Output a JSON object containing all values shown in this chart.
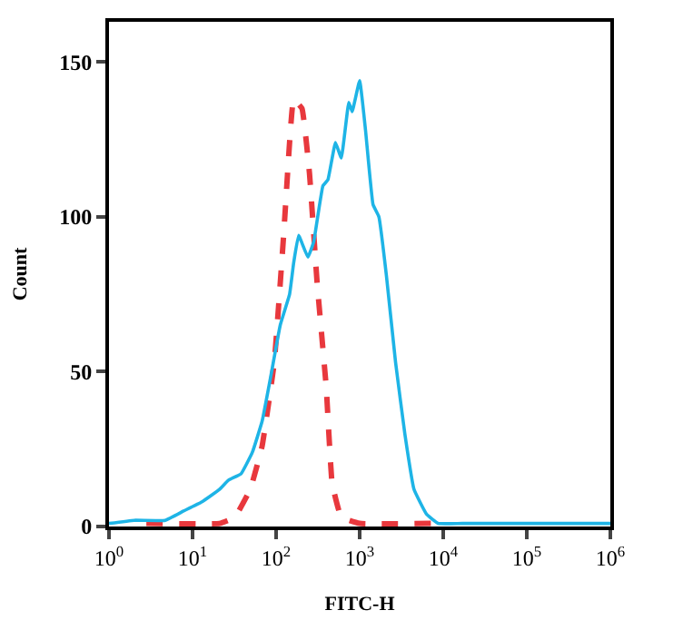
{
  "chart_data": {
    "type": "line",
    "xlabel": "FITC-H",
    "ylabel": "Count",
    "log": "x",
    "xlim": [
      1,
      1000000
    ],
    "xticks": [
      {
        "value": 1,
        "label": "10$^{0}$"
      },
      {
        "value": 10,
        "label": "10$^{1}$"
      },
      {
        "value": 100,
        "label": "10$^{2}$"
      },
      {
        "value": 1000,
        "label": "10$^{3}$"
      },
      {
        "value": 10000,
        "label": "10$^{4}$"
      },
      {
        "value": 100000,
        "label": "10$^{5}$"
      },
      {
        "value": 1000000,
        "label": "10$^{6}$"
      }
    ],
    "ylim": [
      0,
      163
    ],
    "yticks": [
      0,
      50,
      100,
      150
    ],
    "series": [
      {
        "color": "#e8383d",
        "line_style": "dashed",
        "x": [
          2.8,
          21,
          32,
          49,
          68,
          95,
          123,
          145,
          162,
          204,
          251,
          309,
          398,
          468,
          603,
          1000,
          7400
        ],
        "values": [
          1,
          1,
          3,
          12,
          26,
          53,
          94,
          124,
          138,
          135,
          114,
          79,
          45,
          14,
          3,
          1,
          1
        ]
      },
      {
        "color": "#1eb4e6",
        "line_style": "solid",
        "x": [
          1.0,
          2,
          4.7,
          7.8,
          13,
          21,
          27,
          38,
          52,
          68,
          87,
          112,
          145,
          162,
          186,
          240,
          282,
          363,
          417,
          513,
          603,
          741,
          813,
          1000,
          1175,
          1445,
          1700,
          2090,
          2690,
          3470,
          4470,
          6310,
          8710,
          17000,
          1000000
        ],
        "values": [
          1,
          2,
          2,
          5,
          8,
          12,
          15,
          17,
          24,
          34,
          49,
          65,
          75,
          85,
          94,
          87,
          92,
          110,
          112,
          124,
          119,
          137,
          134,
          144,
          128,
          104,
          100,
          81,
          53,
          30,
          12,
          4,
          1,
          1,
          1
        ]
      }
    ]
  }
}
